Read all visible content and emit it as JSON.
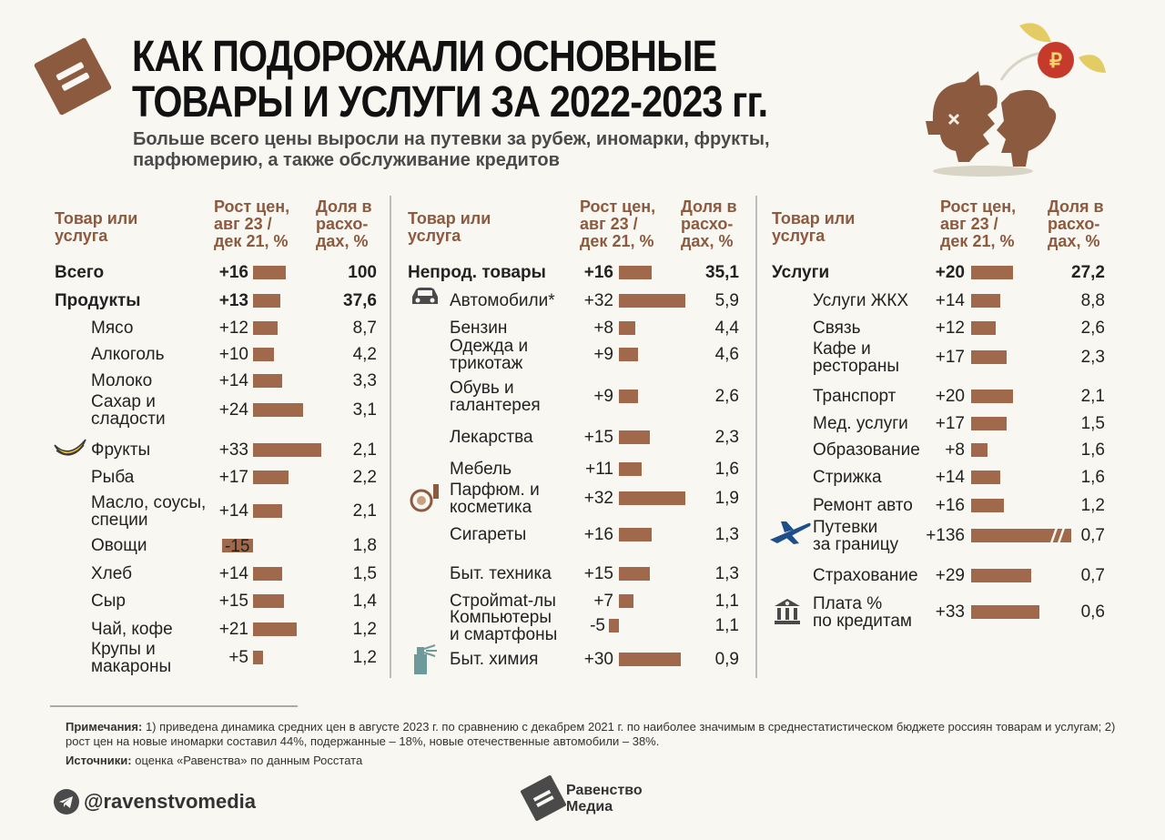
{
  "title": "КАК ПОДОРОЖАЛИ ОСНОВНЫЕ\nТОВАРЫ И УСЛУГИ ЗА 2022-2023 гг.",
  "subtitle": "Больше всего цены выросли на путевки за рубеж, иномарки, фрукты,\nпарфюмерию, а также обслуживание кредитов",
  "coin_symbol": "₽",
  "headers": {
    "item": "Товар или\nуслуга",
    "growth": "Рост цен,\nавг 23 /\nдек 21, %",
    "share": "Доля в\nрасхо-\nдах, %"
  },
  "colors": {
    "bar": "#a0694b",
    "accent": "#8c5a3f",
    "background": "#f9f7f1"
  },
  "chart_data": {
    "type": "bar",
    "title": "КАК ПОДОРОЖАЛИ ОСНОВНЫЕ ТОВАРЫ И УСЛУГИ ЗА 2022-2023 гг.",
    "xlabel": "Рост цен, авг 23 / дек 21, %",
    "ylabel": "Товар или услуга",
    "columns": [
      {
        "name": "Продукты",
        "rows": [
          {
            "label": "Всего",
            "value_text": "+16",
            "value": 16,
            "share": "100",
            "total": true
          },
          {
            "label": "Продукты",
            "value_text": "+13",
            "value": 13,
            "share": "37,6",
            "total": true
          },
          {
            "label": "Мясо",
            "value_text": "+12",
            "value": 12,
            "share": "8,7"
          },
          {
            "label": "Алкоголь",
            "value_text": "+10",
            "value": 10,
            "share": "4,2"
          },
          {
            "label": "Молоко",
            "value_text": "+14",
            "value": 14,
            "share": "3,3"
          },
          {
            "label": "Сахар и\nсладости",
            "value_text": "+24",
            "value": 24,
            "share": "3,1"
          },
          {
            "label": "Фрукты",
            "value_text": "+33",
            "value": 33,
            "share": "2,1",
            "icon": "banana-icon"
          },
          {
            "label": "Рыба",
            "value_text": "+17",
            "value": 17,
            "share": "2,2"
          },
          {
            "label": "Масло, соусы,\nспеции",
            "value_text": "+14",
            "value": 14,
            "share": "2,1"
          },
          {
            "label": "Овощи",
            "value_text": "-15",
            "value": -15,
            "share": "1,8"
          },
          {
            "label": "Хлеб",
            "value_text": "+14",
            "value": 14,
            "share": "1,5"
          },
          {
            "label": "Сыр",
            "value_text": "+15",
            "value": 15,
            "share": "1,4"
          },
          {
            "label": "Чай, кофе",
            "value_text": "+21",
            "value": 21,
            "share": "1,2"
          },
          {
            "label": "Крупы и\nмакароны",
            "value_text": "+5",
            "value": 5,
            "share": "1,2"
          }
        ]
      },
      {
        "name": "Непрод. товары",
        "rows": [
          {
            "label": "Непрод. товары",
            "value_text": "+16",
            "value": 16,
            "share": "35,1",
            "total": true
          },
          {
            "label": "Автомобили*",
            "value_text": "+32",
            "value": 32,
            "share": "5,9",
            "icon": "car-icon"
          },
          {
            "label": "Бензин",
            "value_text": "+8",
            "value": 8,
            "share": "4,4"
          },
          {
            "label": "Одежда и\nтрикотаж",
            "value_text": "+9",
            "value": 9,
            "share": "4,6"
          },
          {
            "label": "Обувь и\nгалантерея",
            "value_text": "+9",
            "value": 9,
            "share": "2,6"
          },
          {
            "label": "Лекарства",
            "value_text": "+15",
            "value": 15,
            "share": "2,3"
          },
          {
            "label": "Мебель",
            "value_text": "+11",
            "value": 11,
            "share": "1,6"
          },
          {
            "label": "Парфюм. и\nкосметика",
            "value_text": "+32",
            "value": 32,
            "share": "1,9",
            "icon": "cosmetics-icon"
          },
          {
            "label": "Сигареты",
            "value_text": "+16",
            "value": 16,
            "share": "1,3"
          },
          {
            "label": "Быт. техника",
            "value_text": "+15",
            "value": 15,
            "share": "1,3"
          },
          {
            "label": "Стройmat-лы",
            "value_text": "+7",
            "value": 7,
            "share": "1,1"
          },
          {
            "label": "Компьютеры\nи смартфоны",
            "value_text": "-5",
            "value": -5,
            "share": "1,1"
          },
          {
            "label": "Быт. химия",
            "value_text": "+30",
            "value": 30,
            "share": "0,9",
            "icon": "spray-icon"
          }
        ]
      },
      {
        "name": "Услуги",
        "rows": [
          {
            "label": "Услуги",
            "value_text": "+20",
            "value": 20,
            "share": "27,2",
            "total": true
          },
          {
            "label": "Услуги ЖКХ",
            "value_text": "+14",
            "value": 14,
            "share": "8,8"
          },
          {
            "label": "Связь",
            "value_text": "+12",
            "value": 12,
            "share": "2,6"
          },
          {
            "label": "Кафе и\nрестораны",
            "value_text": "+17",
            "value": 17,
            "share": "2,3"
          },
          {
            "label": "Транспорт",
            "value_text": "+20",
            "value": 20,
            "share": "2,1"
          },
          {
            "label": "Мед. услуги",
            "value_text": "+17",
            "value": 17,
            "share": "1,5"
          },
          {
            "label": "Образование",
            "value_text": "+8",
            "value": 8,
            "share": "1,6"
          },
          {
            "label": "Стрижка",
            "value_text": "+14",
            "value": 14,
            "share": "1,6"
          },
          {
            "label": "Ремонт авто",
            "value_text": "+16",
            "value": 16,
            "share": "1,2"
          },
          {
            "label": "Путевки\nза границу",
            "value_text": "+136",
            "value": 136,
            "share": "0,7",
            "icon": "airplane-icon",
            "broken_bar": true
          },
          {
            "label": "Страхование",
            "value_text": "+29",
            "value": 29,
            "share": "0,7"
          },
          {
            "label": "Плата %\nпо кредитам",
            "value_text": "+33",
            "value": 33,
            "share": "0,6",
            "icon": "bank-icon"
          }
        ]
      }
    ]
  },
  "notes": {
    "notes_label": "Примечания:",
    "notes_text": " 1) приведена динамика средних цен в августе 2023 г. по сравнению с декабрем 2021 г. по наиболее значимым в среднестатистическом бюджете россиян товарам и услугам; 2) рост цен на новые иномарки составил 44%, подержанные – 18%, новые отечественные автомобили – 38%.",
    "sources_label": "Источники:",
    "sources_text": " оценка «Равенства» по данным Росстата"
  },
  "footer": {
    "handle": "@ravenstvomedia",
    "brand": "Равенство\nМедиа"
  }
}
